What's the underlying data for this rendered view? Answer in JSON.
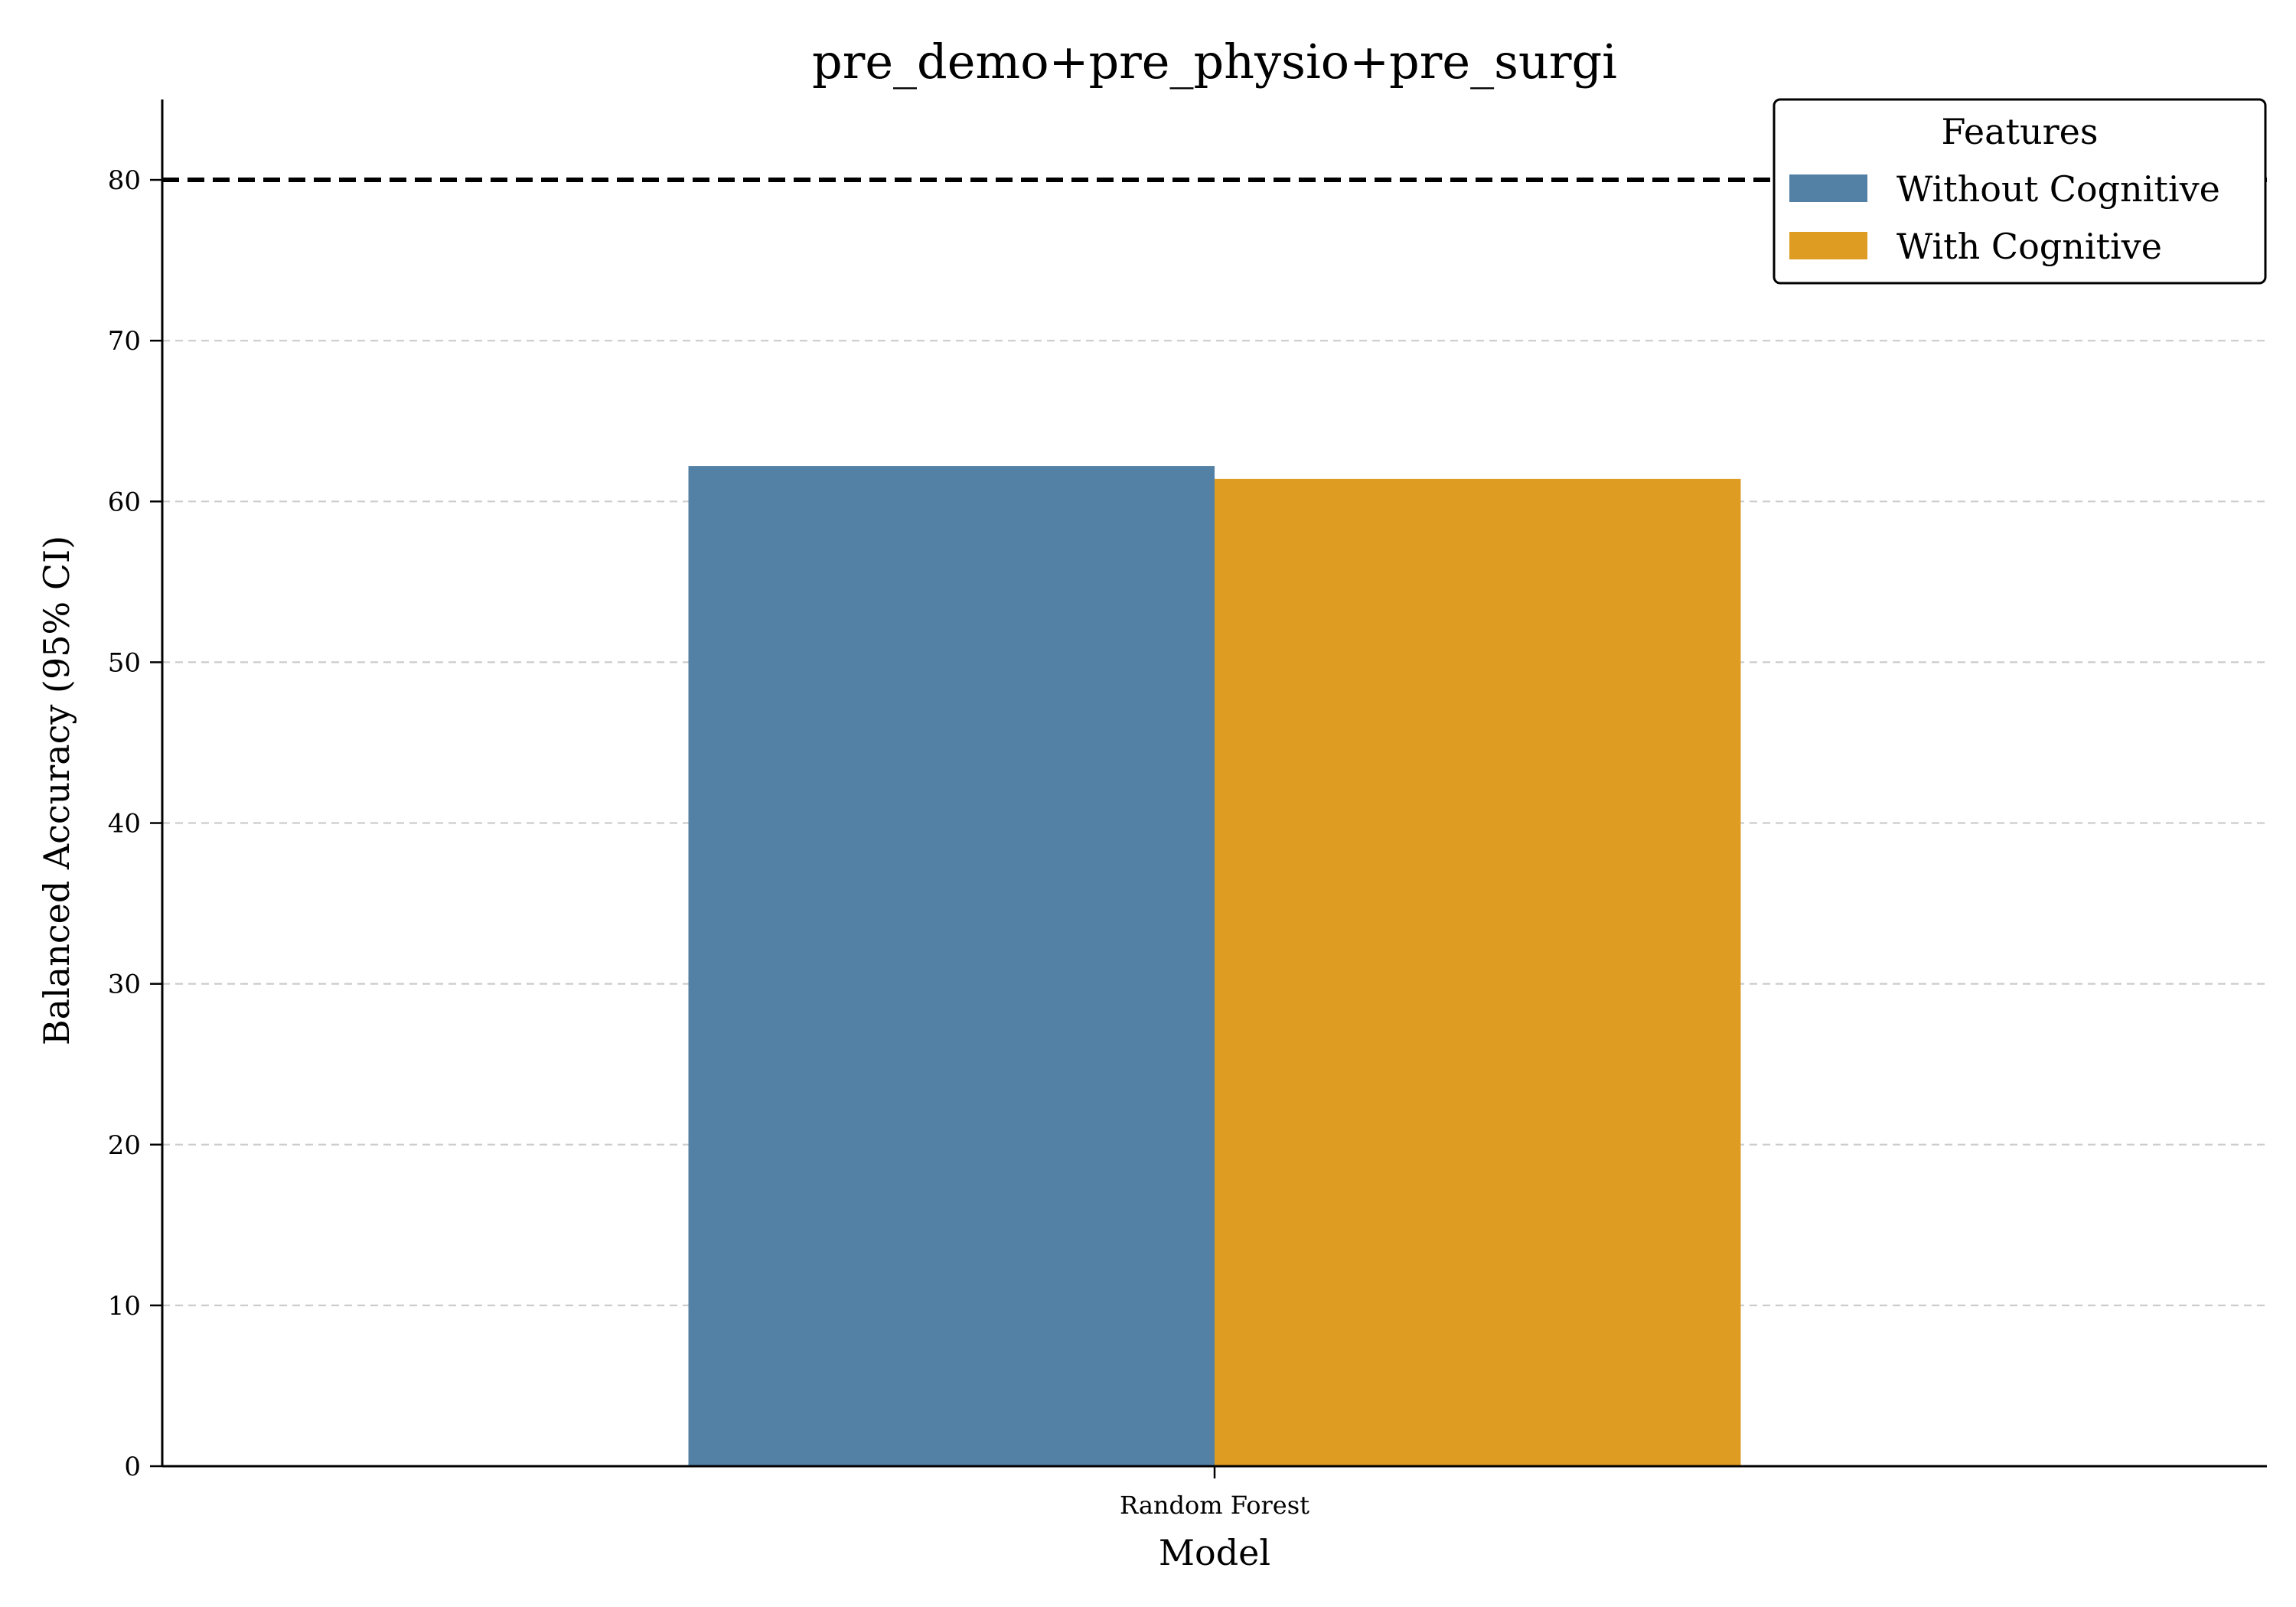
{
  "chart_data": {
    "type": "bar",
    "title": "pre_demo+pre_physio+pre_surgi",
    "xlabel": "Model",
    "ylabel": "Balanced Accuracy (95% CI)",
    "categories": [
      "Random Forest"
    ],
    "series": [
      {
        "name": "Without Cognitive",
        "color": "#5381a5",
        "values": [
          62.2
        ]
      },
      {
        "name": "With Cognitive",
        "color": "#df9c22",
        "values": [
          61.4
        ]
      }
    ],
    "ylim": [
      0,
      85
    ],
    "yticks": [
      0,
      10,
      20,
      30,
      40,
      50,
      60,
      70,
      80
    ],
    "ytick_labels": [
      "0",
      "10",
      "20",
      "30",
      "40",
      "50",
      "60",
      "70",
      "80"
    ],
    "grid": "y-dashed",
    "reference_line": {
      "value": 80,
      "style": "dashed",
      "color": "#000000"
    },
    "legend": {
      "title": "Features",
      "position": "top-right"
    }
  }
}
